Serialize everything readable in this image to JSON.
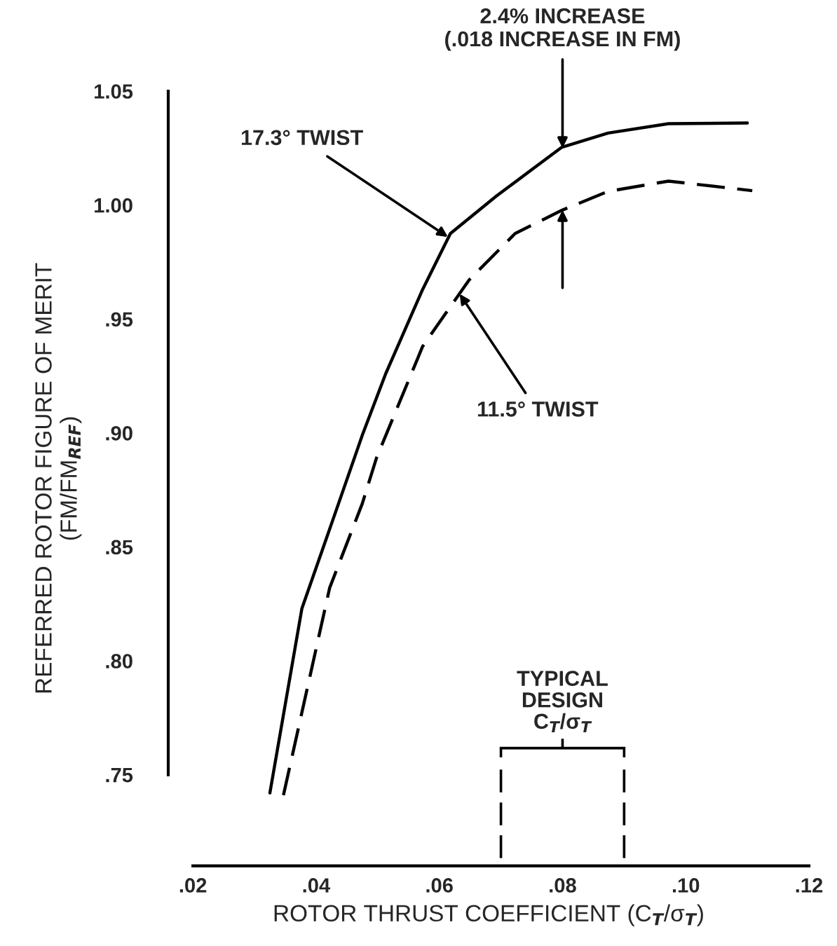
{
  "chart_data": {
    "type": "line",
    "xlabel": "ROTOR THRUST COEFFICIENT (C$_{T}$/σ$_{T}$)",
    "ylabel": "REFERRED ROTOR FIGURE OF MERIT\n(FM/FM$_{REF}$)",
    "series": [
      {
        "color": "#000000",
        "line_style": "solid",
        "x": [
          0.0325,
          0.0377,
          0.043,
          0.0475,
          0.0513,
          0.0573,
          0.0618,
          0.0693,
          0.0799,
          0.0874,
          0.0972,
          0.11
        ],
        "values": [
          0.742,
          0.823,
          0.864,
          0.899,
          0.926,
          0.963,
          0.9875,
          1.004,
          1.0254,
          1.0316,
          1.0357,
          1.036
        ]
      },
      {
        "color": "#000000",
        "line_style": "dashed",
        "x": [
          0.0347,
          0.0422,
          0.0475,
          0.0498,
          0.0573,
          0.0648,
          0.0723,
          0.0799,
          0.0874,
          0.0972,
          0.1108
        ],
        "values": [
          0.741,
          0.832,
          0.869,
          0.889,
          0.938,
          0.967,
          0.9875,
          0.9977,
          1.006,
          1.0105,
          1.0063
        ]
      }
    ],
    "xlim": [
      0.016,
      0.12
    ],
    "ylim": [
      0.71,
      1.05
    ],
    "xticks": [
      {
        "value": 0.02,
        "label": ".02"
      },
      {
        "value": 0.04,
        "label": ".04"
      },
      {
        "value": 0.06,
        "label": ".06"
      },
      {
        "value": 0.08,
        "label": ".08"
      },
      {
        "value": 0.1,
        "label": ".10"
      },
      {
        "value": 0.12,
        "label": ".12"
      }
    ],
    "yticks": [
      {
        "value": 0.75,
        "label": ".75"
      },
      {
        "value": 0.8,
        "label": ".80"
      },
      {
        "value": 0.85,
        "label": ".85"
      },
      {
        "value": 0.9,
        "label": ".90"
      },
      {
        "value": 0.95,
        "label": ".95"
      },
      {
        "value": 1.0,
        "label": "1.00"
      },
      {
        "value": 1.05,
        "label": "1.05"
      }
    ],
    "ref_lines": [
      {
        "axis": "x",
        "value": 0.07,
        "line_style": "dashed",
        "color": "#000000"
      },
      {
        "axis": "x",
        "value": 0.09,
        "line_style": "dashed",
        "color": "#000000"
      }
    ],
    "annotations": [
      {
        "text": "2.4% INCREASE\n(.018 INCREASE IN FM)",
        "x": 0.08,
        "y": 1.025
      },
      {
        "text": "17.3° TWIST",
        "x": 0.0614,
        "y": 0.986
      },
      {
        "text": "11.5° TWIST",
        "x": 0.0633,
        "y": 0.961
      },
      "TYPICAL\nDESIGN\nC$_{T}$/σ$_{T}$"
    ],
    "grid": false,
    "legend": false
  }
}
